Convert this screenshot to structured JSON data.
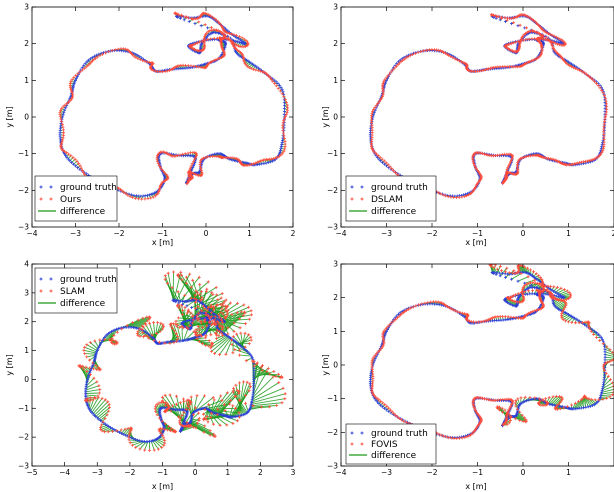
{
  "chart_data": [
    {
      "type": "scatter",
      "method": "Ours",
      "xlabel": "x [m]",
      "ylabel": "y [m]",
      "xlim": [
        -4,
        2
      ],
      "ylim": [
        -3,
        3
      ],
      "xticks": [
        -4,
        -3,
        -2,
        -1,
        0,
        1,
        2
      ],
      "yticks": [
        -3,
        -2,
        -1,
        0,
        1,
        2,
        3
      ],
      "grid": false,
      "legend": {
        "placement": "lower-left",
        "entries": [
          "ground truth",
          "Ours",
          "difference"
        ]
      },
      "colors": {
        "ground_truth": "#2b3fd6",
        "estimate": "#ff4b3a",
        "difference": "#1a9a1a"
      },
      "error_level": 0.06,
      "drift": [
        0,
        0
      ],
      "series": [
        {
          "name": "ground truth",
          "points": [
            [
              -0.45,
              -1.8
            ],
            [
              -0.35,
              -1.5
            ],
            [
              -0.25,
              -1.1
            ],
            [
              -0.6,
              -1.05
            ],
            [
              -1.05,
              -1.0
            ],
            [
              -1.05,
              -1.35
            ],
            [
              -0.95,
              -1.7
            ],
            [
              -1.15,
              -2.05
            ],
            [
              -1.6,
              -2.15
            ],
            [
              -2.2,
              -1.9
            ],
            [
              -2.75,
              -1.55
            ],
            [
              -3.2,
              -1.1
            ],
            [
              -3.35,
              -0.6
            ],
            [
              -3.3,
              0.0
            ],
            [
              -3.1,
              0.6
            ],
            [
              -3.0,
              1.0
            ],
            [
              -2.7,
              1.55
            ],
            [
              -2.2,
              1.8
            ],
            [
              -1.7,
              1.75
            ],
            [
              -1.3,
              1.45
            ],
            [
              -1.15,
              1.25
            ],
            [
              -0.8,
              1.3
            ],
            [
              -0.35,
              1.35
            ],
            [
              0.0,
              1.45
            ],
            [
              0.3,
              1.6
            ],
            [
              0.45,
              2.0
            ],
            [
              0.3,
              2.1
            ],
            [
              0.45,
              2.2
            ],
            [
              0.15,
              2.3
            ],
            [
              -0.1,
              2.0
            ],
            [
              -0.15,
              1.75
            ],
            [
              -0.4,
              1.95
            ],
            [
              0.05,
              2.1
            ],
            [
              0.55,
              2.1
            ],
            [
              0.9,
              2.0
            ],
            [
              0.6,
              2.25
            ],
            [
              0.3,
              2.55
            ],
            [
              0.05,
              2.75
            ],
            [
              -0.3,
              2.7
            ],
            [
              -0.65,
              2.72
            ],
            [
              0.5,
              2.2
            ],
            [
              0.7,
              1.75
            ],
            [
              1.0,
              1.5
            ],
            [
              1.35,
              1.2
            ],
            [
              1.75,
              0.75
            ],
            [
              1.8,
              0.0
            ],
            [
              1.75,
              -0.7
            ],
            [
              1.6,
              -1.15
            ],
            [
              1.15,
              -1.3
            ],
            [
              0.9,
              -1.25
            ],
            [
              0.55,
              -1.15
            ],
            [
              0.3,
              -1.0
            ],
            [
              -0.05,
              -1.15
            ],
            [
              -0.15,
              -1.5
            ],
            [
              -0.3,
              -1.55
            ],
            [
              -0.45,
              -1.8
            ]
          ]
        },
        {
          "name": "Ours",
          "points": []
        }
      ]
    },
    {
      "type": "scatter",
      "method": "DSLAM",
      "xlabel": "x [m]",
      "ylabel": "y [m]",
      "xlim": [
        -4,
        2
      ],
      "ylim": [
        -3,
        3
      ],
      "xticks": [
        -4,
        -3,
        -2,
        -1,
        0,
        1,
        2
      ],
      "yticks": [
        -3,
        -2,
        -1,
        0,
        1,
        2,
        3
      ],
      "grid": false,
      "legend": {
        "placement": "lower-left",
        "entries": [
          "ground truth",
          "DSLAM",
          "difference"
        ]
      },
      "colors": {
        "ground_truth": "#2b3fd6",
        "estimate": "#ff4b3a",
        "difference": "#1a9a1a"
      },
      "error_level": 0.03,
      "drift": [
        0,
        0
      ],
      "series": [
        {
          "name": "ground truth",
          "points": []
        },
        {
          "name": "DSLAM",
          "points": []
        }
      ]
    },
    {
      "type": "scatter",
      "method": "SLAM",
      "xlabel": "x [m]",
      "ylabel": "y [m]",
      "xlim": [
        -5,
        3
      ],
      "ylim": [
        -3,
        4
      ],
      "xticks": [
        -5,
        -4,
        -3,
        -2,
        -1,
        0,
        1,
        2,
        3
      ],
      "yticks": [
        -3,
        -2,
        -1,
        0,
        1,
        2,
        3,
        4
      ],
      "grid": false,
      "legend": {
        "placement": "top-left",
        "entries": [
          "ground truth",
          "SLAM",
          "difference"
        ]
      },
      "colors": {
        "ground_truth": "#2b3fd6",
        "estimate": "#ff4b3a",
        "difference": "#1a9a1a"
      },
      "error_level": 0.45,
      "drift": [
        0.25,
        0.35
      ],
      "series": [
        {
          "name": "ground truth",
          "points": []
        },
        {
          "name": "SLAM",
          "points": []
        }
      ]
    },
    {
      "type": "scatter",
      "method": "FOVIS",
      "xlabel": "x [m]",
      "ylabel": "y [m]",
      "xlim": [
        -4,
        2
      ],
      "ylim": [
        -3,
        3
      ],
      "xticks": [
        -4,
        -3,
        -2,
        -1,
        0,
        1
      ],
      "yticks": [
        -3,
        -2,
        -1,
        0,
        1,
        2,
        3
      ],
      "grid": false,
      "legend": {
        "placement": "lower-left",
        "entries": [
          "ground truth",
          "FOVIS",
          "difference"
        ]
      },
      "colors": {
        "ground_truth": "#2b3fd6",
        "estimate": "#ff4b3a",
        "difference": "#1a9a1a"
      },
      "error_level": 0.12,
      "drift": [
        0.05,
        0.1
      ],
      "series": [
        {
          "name": "ground truth",
          "points": []
        },
        {
          "name": "FOVIS",
          "points": []
        }
      ]
    }
  ]
}
